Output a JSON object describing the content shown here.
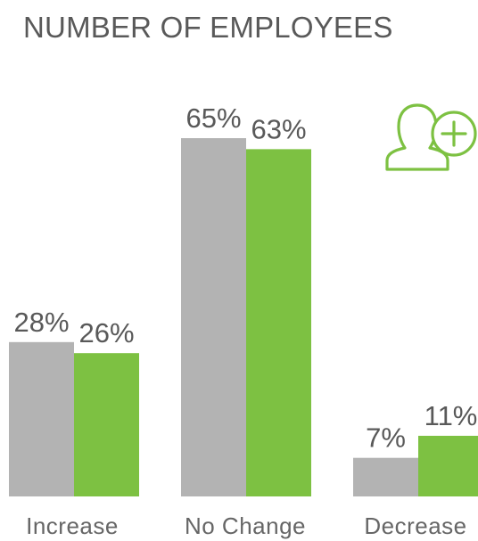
{
  "title": "NUMBER OF EMPLOYEES",
  "icon": "add-user-icon",
  "colors": {
    "series_a": "#b3b3b3",
    "series_b": "#7dc142",
    "label": "#595959",
    "axis_label": "#666666"
  },
  "chart_data": {
    "type": "bar",
    "title": "NUMBER OF EMPLOYEES",
    "categories": [
      "Increase",
      "No Change",
      "Decrease"
    ],
    "series": [
      {
        "values": [
          28,
          65,
          7
        ],
        "labels": [
          "28%",
          "65%",
          "7%"
        ],
        "color": "#b3b3b3"
      },
      {
        "values": [
          26,
          63,
          11
        ],
        "labels": [
          "26%",
          "63%",
          "11%"
        ],
        "color": "#7dc142"
      }
    ],
    "xlabel": "",
    "ylabel": "",
    "ylim": [
      0,
      65
    ],
    "grid": false,
    "legend": "none"
  }
}
